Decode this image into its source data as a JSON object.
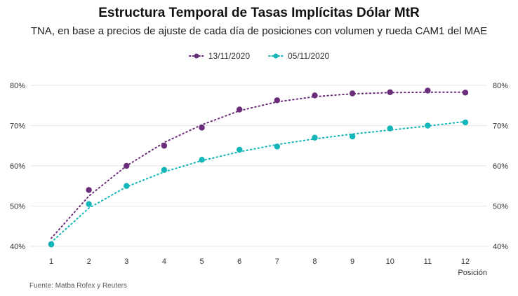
{
  "chart_data": {
    "type": "line",
    "title": "Estructura Temporal de Tasas Implícitas Dólar MtR",
    "subtitle": "TNA, en base a precios de ajuste de cada día de posiciones con volumen y rueda CAM1 del MAE",
    "xlabel": "Posición",
    "ylabel": "",
    "x": [
      1,
      2,
      3,
      4,
      5,
      6,
      7,
      8,
      9,
      10,
      11,
      12
    ],
    "ylim": [
      40,
      80
    ],
    "yticks": [
      "40%",
      "50%",
      "60%",
      "70%",
      "80%"
    ],
    "grid": true,
    "legend_position": "top",
    "series": [
      {
        "name": "13/11/2020",
        "color": "#6b2d7a",
        "values": [
          40.5,
          54.0,
          60.0,
          65.0,
          69.5,
          74.0,
          76.3,
          77.5,
          78.0,
          78.3,
          78.7,
          78.2
        ],
        "trend": [
          42.0,
          52.5,
          60.0,
          65.8,
          70.2,
          73.7,
          75.9,
          77.2,
          77.9,
          78.2,
          78.3,
          78.3
        ]
      },
      {
        "name": "05/11/2020",
        "color": "#12b5b8",
        "values": [
          40.5,
          50.5,
          55.0,
          59.0,
          61.5,
          64.0,
          64.8,
          67.0,
          67.3,
          69.3,
          70.0,
          70.8
        ],
        "trend": [
          41.0,
          49.5,
          54.8,
          58.5,
          61.3,
          63.5,
          65.3,
          66.7,
          67.9,
          68.9,
          69.9,
          71.0
        ]
      }
    ],
    "source": "Fuente: Matba Rofex y Reuters"
  }
}
